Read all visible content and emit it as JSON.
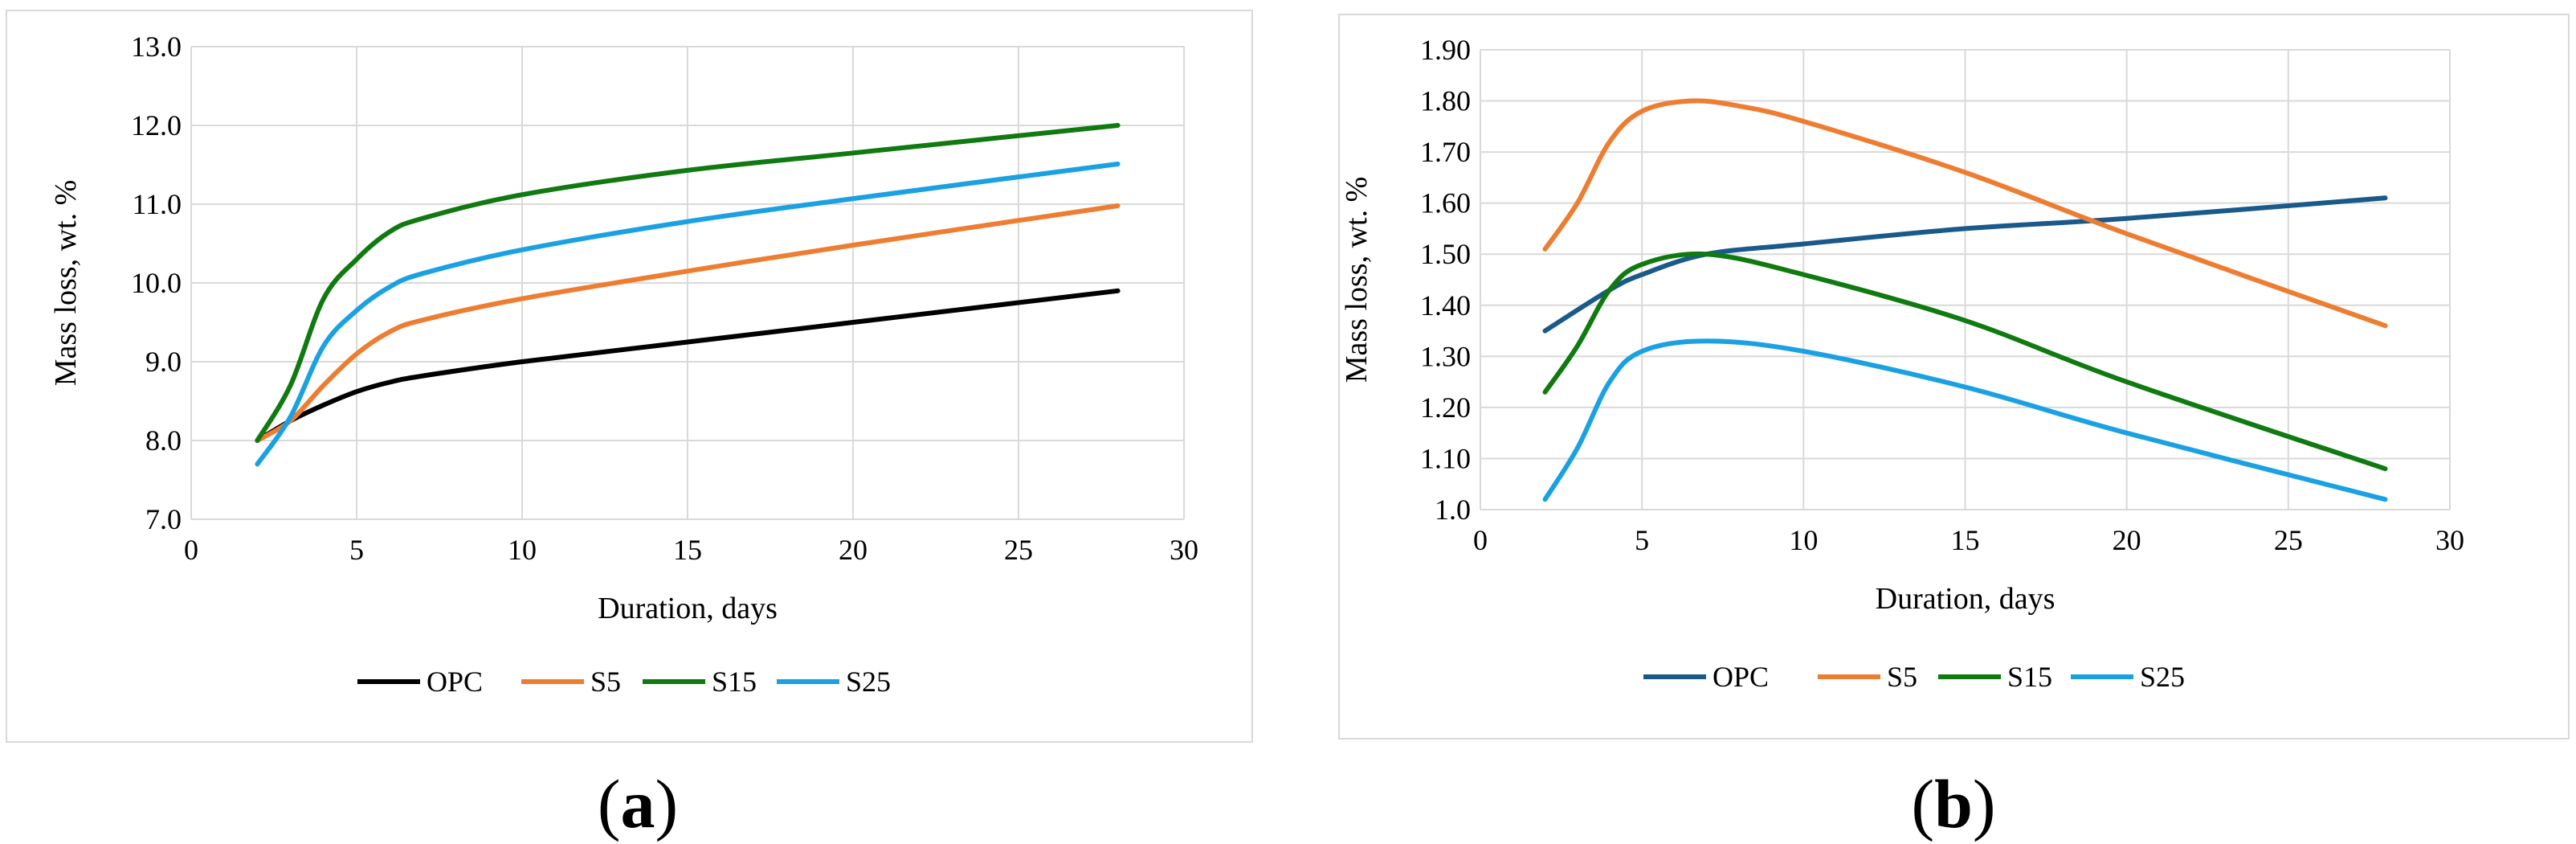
{
  "chart_data": [
    {
      "panel": "a",
      "type": "line",
      "caption_letter": "a",
      "xlabel": "Duration, days",
      "ylabel": "Mass loss, wt. %",
      "xlim": [
        0,
        30
      ],
      "ylim": [
        7.0,
        13.0
      ],
      "x_ticks": [
        "0",
        "5",
        "10",
        "15",
        "20",
        "25",
        "30"
      ],
      "y_ticks": [
        "7.0",
        "8.0",
        "9.0",
        "10.0",
        "11.0",
        "12.0",
        "13.0"
      ],
      "grid": true,
      "legend_position": "bottom",
      "series": [
        {
          "name": "OPC",
          "color": "#000000",
          "x": [
            2,
            3,
            4,
            5,
            6,
            7,
            10,
            15,
            20,
            28
          ],
          "y": [
            8.0,
            8.25,
            8.45,
            8.62,
            8.74,
            8.82,
            9.0,
            9.25,
            9.5,
            9.9
          ]
        },
        {
          "name": "S5",
          "color": "#ed7d31",
          "x": [
            2,
            3,
            4,
            5,
            6,
            7,
            10,
            15,
            20,
            28
          ],
          "y": [
            8.0,
            8.25,
            8.7,
            9.1,
            9.38,
            9.53,
            9.8,
            10.15,
            10.48,
            10.98
          ]
        },
        {
          "name": "S15",
          "color": "#107a10",
          "x": [
            2,
            3,
            4,
            5,
            6,
            7,
            10,
            15,
            20,
            28
          ],
          "y": [
            8.0,
            8.7,
            9.8,
            10.3,
            10.65,
            10.82,
            11.12,
            11.43,
            11.65,
            12.0
          ]
        },
        {
          "name": "S25",
          "color": "#1ba1e2",
          "x": [
            2,
            3,
            4,
            5,
            6,
            7,
            10,
            15,
            20,
            28
          ],
          "y": [
            7.7,
            8.3,
            9.2,
            9.65,
            9.95,
            10.12,
            10.42,
            10.78,
            11.07,
            11.51
          ]
        }
      ]
    },
    {
      "panel": "b",
      "type": "line",
      "caption_letter": "b",
      "xlabel": "Duration, days",
      "ylabel": "Mass loss, wt. %",
      "xlim": [
        0,
        30
      ],
      "ylim": [
        1.0,
        1.9
      ],
      "x_ticks": [
        "0",
        "5",
        "10",
        "15",
        "20",
        "25",
        "30"
      ],
      "y_ticks": [
        "1.0",
        "1.10",
        "1.20",
        "1.30",
        "1.40",
        "1.50",
        "1.60",
        "1.70",
        "1.80",
        "1.90"
      ],
      "grid": true,
      "legend_position": "bottom",
      "series": [
        {
          "name": "OPC",
          "color": "#1a5a8a",
          "x": [
            2,
            4,
            5,
            7,
            10,
            15,
            20,
            28
          ],
          "y": [
            1.35,
            1.43,
            1.46,
            1.5,
            1.52,
            1.55,
            1.57,
            1.61
          ]
        },
        {
          "name": "S5",
          "color": "#ed7d31",
          "x": [
            2,
            3,
            4,
            5,
            6.5,
            8,
            10,
            15,
            20,
            28
          ],
          "y": [
            1.51,
            1.6,
            1.72,
            1.78,
            1.8,
            1.79,
            1.76,
            1.66,
            1.54,
            1.36
          ]
        },
        {
          "name": "S15",
          "color": "#107a10",
          "x": [
            2,
            3,
            4,
            5,
            7,
            10,
            15,
            20,
            28
          ],
          "y": [
            1.23,
            1.32,
            1.43,
            1.48,
            1.5,
            1.46,
            1.37,
            1.25,
            1.08
          ]
        },
        {
          "name": "S25",
          "color": "#1ba1e2",
          "x": [
            2,
            3,
            4,
            5,
            7,
            10,
            15,
            20,
            28
          ],
          "y": [
            1.02,
            1.12,
            1.25,
            1.31,
            1.33,
            1.31,
            1.24,
            1.15,
            1.02
          ]
        }
      ]
    }
  ]
}
